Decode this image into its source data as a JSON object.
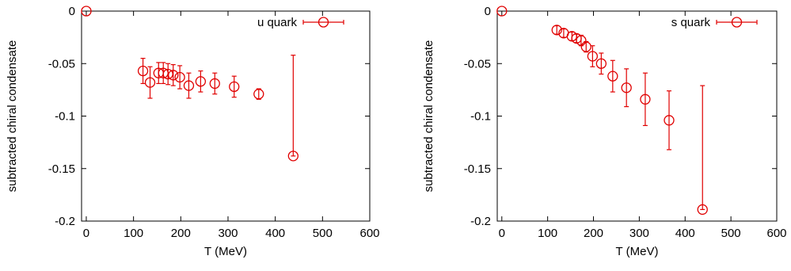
{
  "chart_data": [
    {
      "type": "scatter",
      "title": "",
      "xlabel": "T (MeV)",
      "ylabel": "subtracted chiral condensate",
      "xlim": [
        -10,
        600
      ],
      "ylim": [
        -0.2,
        0
      ],
      "xticks": [
        "0",
        "100",
        "200",
        "300",
        "400",
        "500",
        "600"
      ],
      "xtick_values": [
        0,
        100,
        200,
        300,
        400,
        500,
        600
      ],
      "yticks": [
        "0",
        "-0.05",
        "-0.1",
        "-0.15",
        "-0.2"
      ],
      "ytick_values": [
        0,
        -0.05,
        -0.1,
        -0.15,
        -0.2
      ],
      "grid": false,
      "legend_position": "top-right",
      "color": "#e00000",
      "series": [
        {
          "name": "u quark",
          "x": [
            0,
            120,
            135,
            153,
            163,
            173,
            184,
            198,
            217,
            242,
            272,
            313,
            365,
            438
          ],
          "y": [
            0,
            -0.057,
            -0.068,
            -0.059,
            -0.059,
            -0.06,
            -0.061,
            -0.063,
            -0.071,
            -0.067,
            -0.069,
            -0.072,
            -0.079,
            -0.138
          ],
          "y_err_low": [
            0,
            0.012,
            0.015,
            0.01,
            0.01,
            0.01,
            0.01,
            0.011,
            0.012,
            0.01,
            0.01,
            0.01,
            0.005,
            0.0
          ],
          "y_err_high": [
            0,
            0.012,
            0.015,
            0.01,
            0.01,
            0.01,
            0.01,
            0.011,
            0.012,
            0.01,
            0.01,
            0.01,
            0.005,
            0.096
          ]
        }
      ]
    },
    {
      "type": "scatter",
      "title": "",
      "xlabel": "T (MeV)",
      "ylabel": "subtracted chiral condensate",
      "xlim": [
        -10,
        600
      ],
      "ylim": [
        -0.2,
        0
      ],
      "xticks": [
        "0",
        "100",
        "200",
        "300",
        "400",
        "500",
        "600"
      ],
      "xtick_values": [
        0,
        100,
        200,
        300,
        400,
        500,
        600
      ],
      "yticks": [
        "0",
        "-0.05",
        "-0.1",
        "-0.15",
        "-0.2"
      ],
      "ytick_values": [
        0,
        -0.05,
        -0.1,
        -0.15,
        -0.2
      ],
      "grid": false,
      "legend_position": "top-right",
      "color": "#e00000",
      "series": [
        {
          "name": "s quark",
          "x": [
            0,
            120,
            135,
            153,
            163,
            173,
            184,
            198,
            217,
            242,
            272,
            313,
            365,
            438
          ],
          "y": [
            0,
            -0.018,
            -0.021,
            -0.024,
            -0.026,
            -0.028,
            -0.034,
            -0.043,
            -0.05,
            -0.062,
            -0.073,
            -0.084,
            -0.104,
            -0.189
          ],
          "y_err_low": [
            0,
            0.004,
            0.004,
            0.004,
            0.004,
            0.005,
            0.005,
            0.01,
            0.01,
            0.015,
            0.018,
            0.025,
            0.028,
            0.0
          ],
          "y_err_high": [
            0,
            0.004,
            0.004,
            0.004,
            0.004,
            0.005,
            0.005,
            0.01,
            0.01,
            0.015,
            0.018,
            0.025,
            0.028,
            0.118
          ]
        }
      ]
    }
  ]
}
